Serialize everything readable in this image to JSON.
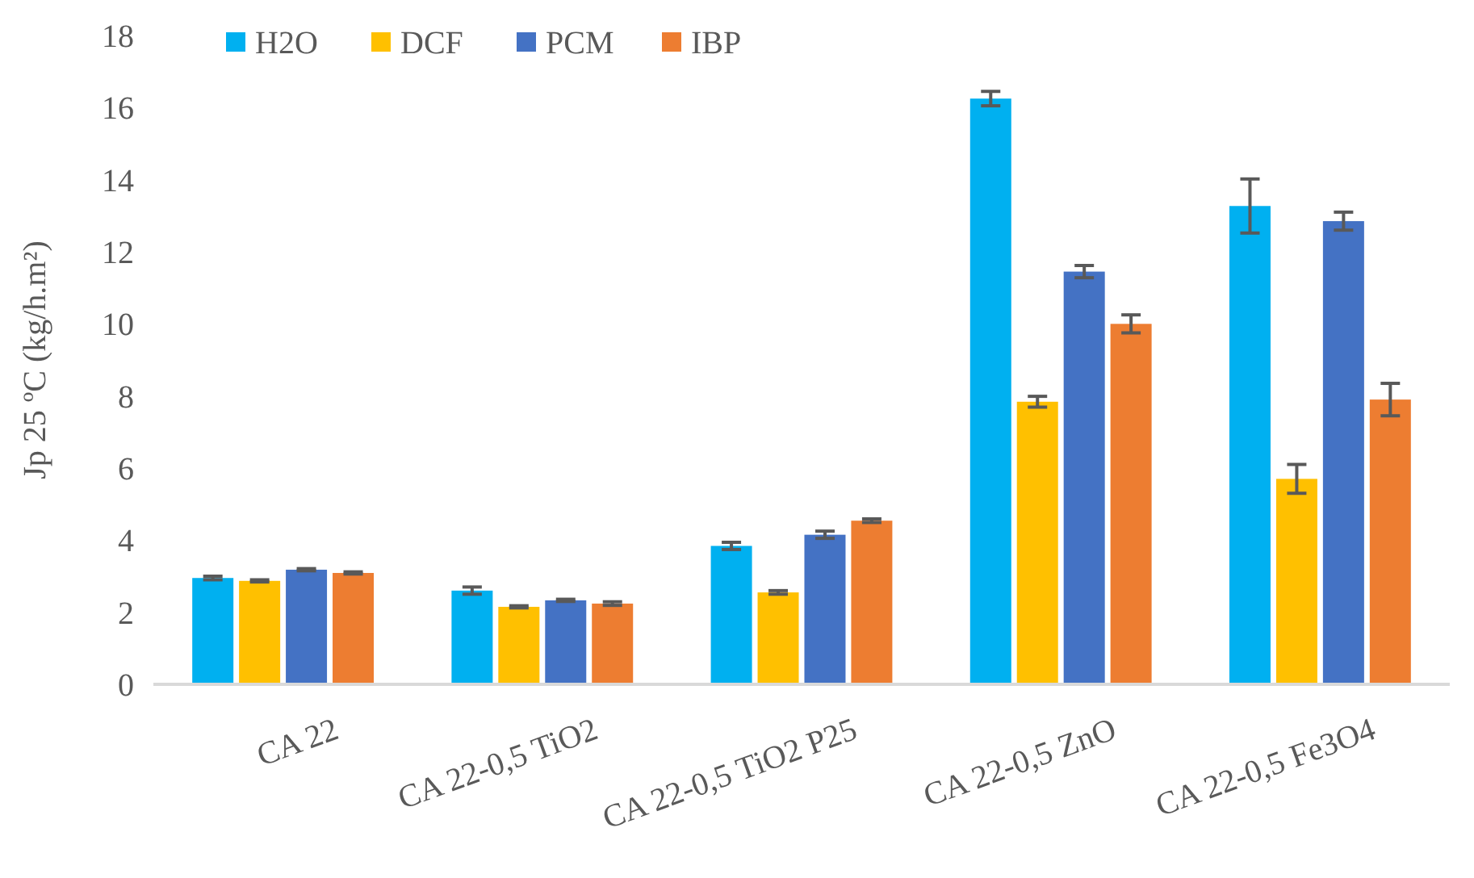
{
  "chart_data": {
    "type": "bar",
    "ylabel": "Jp 25 ºC (kg/h.m²)",
    "categories": [
      "CA 22",
      "CA 22-0,5 TiO2",
      "CA 22-0,5 TiO2 P25",
      "CA 22-0,5 ZnO",
      "CA 22-0,5 Fe3O4"
    ],
    "series": [
      {
        "name": "H2O",
        "color": "#00b0f0",
        "values": [
          2.95,
          2.6,
          3.84,
          16.25,
          13.27
        ],
        "errors": [
          0.05,
          0.1,
          0.1,
          0.2,
          0.75
        ]
      },
      {
        "name": "DCF",
        "color": "#ffc000",
        "values": [
          2.87,
          2.15,
          2.55,
          7.84,
          5.7
        ],
        "errors": [
          0.03,
          0.03,
          0.05,
          0.15,
          0.4
        ]
      },
      {
        "name": "PCM",
        "color": "#4472c4",
        "values": [
          3.18,
          2.33,
          4.15,
          11.45,
          12.85
        ],
        "errors": [
          0.03,
          0.03,
          0.1,
          0.17,
          0.25
        ]
      },
      {
        "name": "IBP",
        "color": "#ed7d31",
        "values": [
          3.09,
          2.24,
          4.54,
          10.0,
          7.9
        ],
        "errors": [
          0.03,
          0.05,
          0.05,
          0.25,
          0.45
        ]
      }
    ],
    "ylim": [
      0,
      18
    ],
    "yticks": [
      0,
      2,
      4,
      6,
      8,
      10,
      12,
      14,
      16,
      18
    ],
    "grid": false,
    "legend": "top left"
  }
}
